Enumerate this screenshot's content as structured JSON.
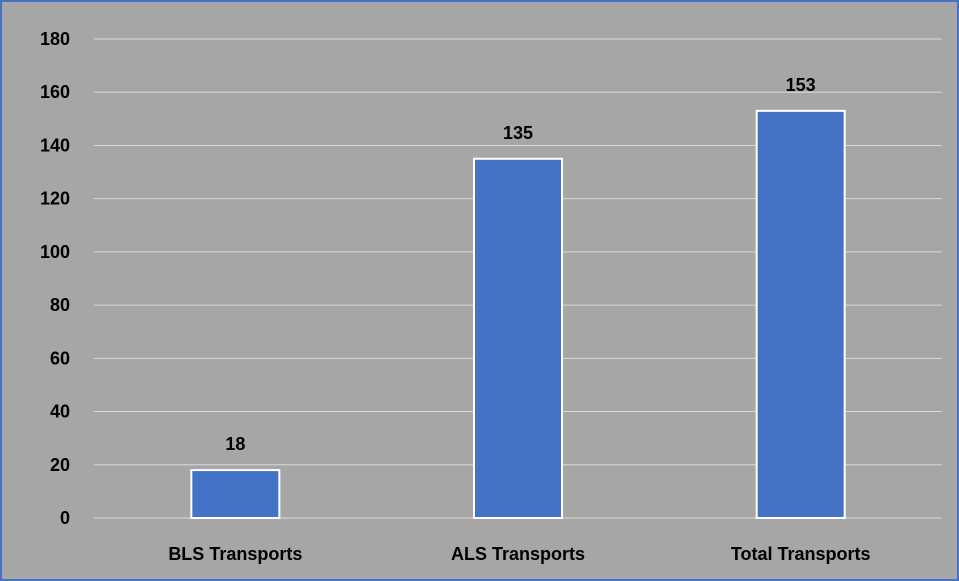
{
  "chart_data": {
    "type": "bar",
    "categories": [
      "BLS Transports",
      "ALS Transports",
      "Total Transports"
    ],
    "values": [
      18,
      135,
      153
    ],
    "data_labels": [
      "18",
      "135",
      "153"
    ],
    "title": "",
    "xlabel": "",
    "ylabel": "",
    "ylim": [
      0,
      180
    ],
    "yticks": [
      0,
      20,
      40,
      60,
      80,
      100,
      120,
      140,
      160,
      180
    ],
    "ytick_labels": [
      "0",
      "20",
      "40",
      "60",
      "80",
      "100",
      "120",
      "140",
      "160",
      "180"
    ],
    "grid": true,
    "legend": "none",
    "colors": {
      "bar": "#4472c4",
      "bar_border": "#ffffff",
      "background": "#a6a6a6",
      "gridline": "#d9d9d9",
      "frame": "#4472c4"
    }
  }
}
